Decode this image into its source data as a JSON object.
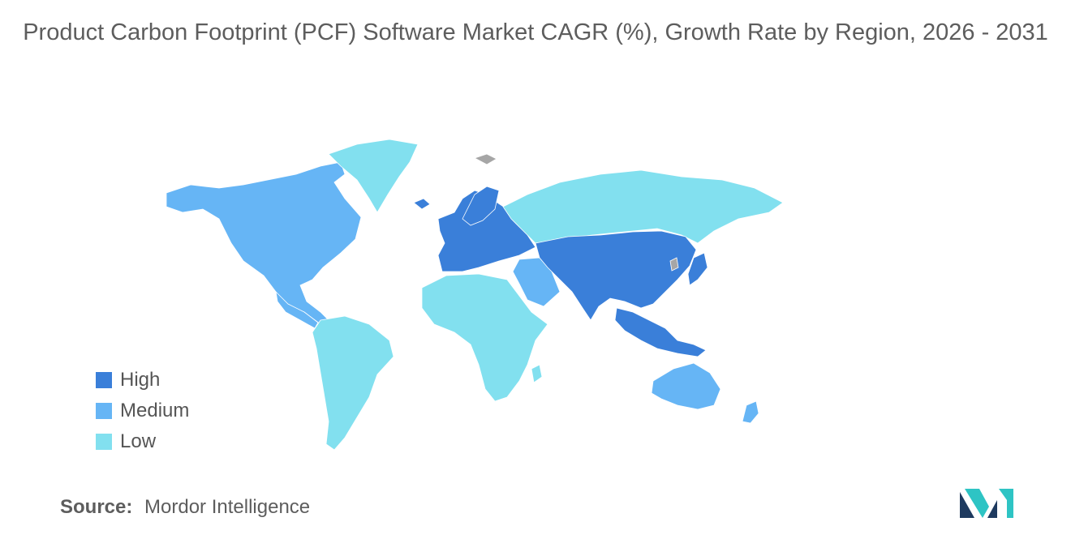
{
  "title": "Product Carbon Footprint (PCF) Software Market CAGR (%), Growth Rate by Region, 2026 - 2031",
  "legend": [
    {
      "label": "High",
      "color": "#3a7fd9"
    },
    {
      "label": "Medium",
      "color": "#66b5f5"
    },
    {
      "label": "Low",
      "color": "#82e0ef"
    }
  ],
  "no_data_color": "#a6a6a6",
  "regions": {
    "north_america": "Medium",
    "greenland": "Low",
    "south_america": "Low",
    "europe": "High",
    "russia": "Low",
    "middle_east": "Medium",
    "africa": "Low",
    "asia": "High",
    "oceania": "Medium"
  },
  "source": {
    "label": "Source:",
    "name": "Mordor Intelligence"
  },
  "logo": {
    "icon": "mordor-intelligence-logo-icon",
    "colors": [
      "#1e3a5f",
      "#2ec4c4"
    ]
  }
}
